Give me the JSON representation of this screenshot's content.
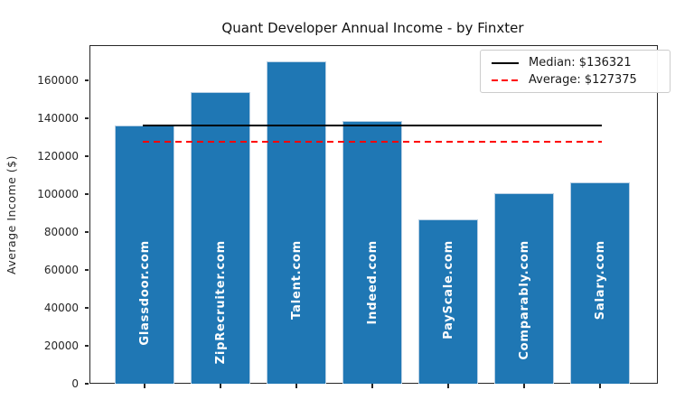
{
  "chart_data": {
    "type": "bar",
    "title": "Quant Developer Annual Income - by Finxter",
    "xlabel": "",
    "ylabel": "Average Income ($)",
    "categories": [
      "Glassdoor.com",
      "ZipRecruiter.com",
      "Talent.com",
      "Indeed.com",
      "PayScale.com",
      "Comparably.com",
      "Salary.com"
    ],
    "values": [
      136321,
      153954,
      170000,
      138500,
      86500,
      100250,
      106100
    ],
    "yticks": [
      0,
      20000,
      40000,
      60000,
      80000,
      100000,
      120000,
      140000,
      160000
    ],
    "ylim": [
      0,
      178500
    ],
    "grid": false,
    "legend_position": "upper right",
    "bar_color": "#1f77b4",
    "bar_edge_color": "#b7cfe4",
    "bar_label_color": "#ffffff",
    "reference_lines": [
      {
        "name": "median",
        "label": "Median: $136321",
        "value": 136321,
        "color": "#000000",
        "style": "solid"
      },
      {
        "name": "average",
        "label": "Average: $127375",
        "value": 127375,
        "color": "#ff0000",
        "style": "dashed"
      }
    ]
  }
}
